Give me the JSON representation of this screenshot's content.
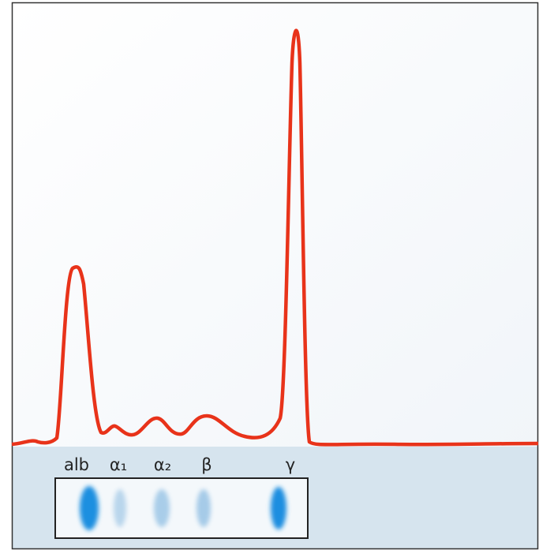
{
  "labels": [
    "alb",
    "α₁",
    "α₂",
    "β",
    "γ"
  ]
}
